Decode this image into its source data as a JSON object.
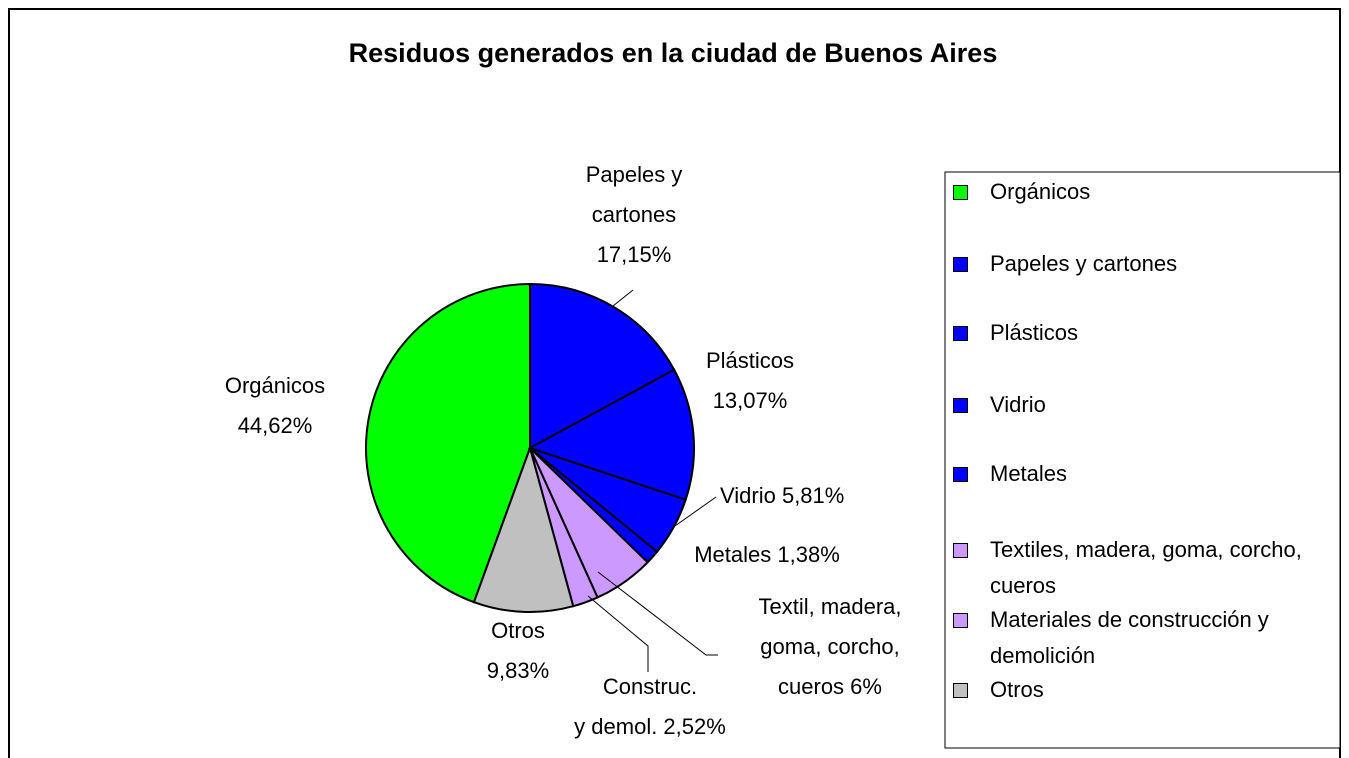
{
  "chart_data": {
    "type": "pie",
    "title": "Residuos generados en la ciudad de Buenos Aires",
    "categories": [
      "Orgánicos",
      "Papeles y cartones",
      "Plásticos",
      "Vidrio",
      "Metales",
      "Textiles, madera, goma, corcho, cueros",
      "Materiales de construcción y demolición",
      "Otros"
    ],
    "values": [
      44.62,
      17.15,
      13.07,
      5.81,
      1.38,
      6,
      2.52,
      9.83
    ],
    "value_labels": [
      [
        "Orgánicos",
        "44,62%"
      ],
      [
        "Papeles y",
        "cartones",
        "17,15%"
      ],
      [
        "Plásticos",
        "13,07%"
      ],
      [
        "Vidrio 5,81%"
      ],
      [
        "Metales 1,38%"
      ],
      [
        "Textil, madera,",
        "goma, corcho,",
        "cueros 6%"
      ],
      [
        "Construc.",
        "y demol. 2,52%"
      ],
      [
        "Otros",
        "9,83%"
      ]
    ],
    "colors": [
      "#00ff00",
      "#0000ff",
      "#0000ff",
      "#0000ff",
      "#0000ff",
      "#cc99ff",
      "#cc99ff",
      "#c0c0c0"
    ],
    "legend": "right"
  }
}
